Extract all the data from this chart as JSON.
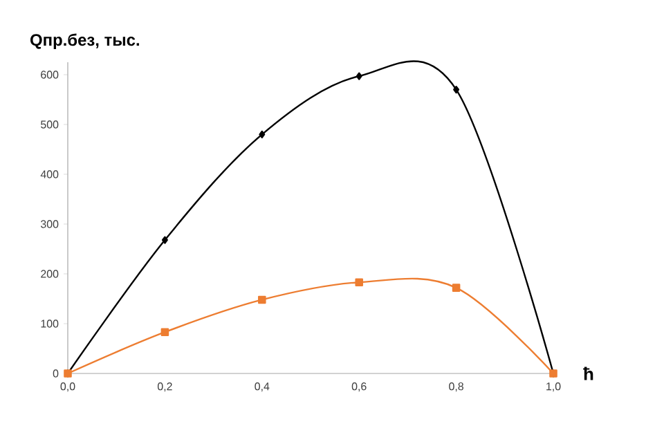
{
  "chart_data": {
    "type": "line",
    "ylabel": "Qпр.без, тыс.",
    "xlabel": "ħ",
    "x": [
      0,
      0.2,
      0.4,
      0.6,
      0.8,
      1.0
    ],
    "series": [
      {
        "color": "#000000",
        "marker": "diamond",
        "values": [
          0,
          268,
          480,
          597,
          570,
          0
        ]
      },
      {
        "color": "#ed7d31",
        "marker": "square",
        "values": [
          0,
          83,
          148,
          183,
          172,
          0
        ]
      }
    ],
    "xlim": [
      0,
      1.0
    ],
    "xticks": [
      {
        "value": 0,
        "label": "0,0"
      },
      {
        "value": 0.2,
        "label": "0,2"
      },
      {
        "value": 0.4,
        "label": "0,4"
      },
      {
        "value": 0.6,
        "label": "0,6"
      },
      {
        "value": 0.8,
        "label": "0,8"
      },
      {
        "value": 1.0,
        "label": "1,0"
      }
    ],
    "ylim": [
      0,
      625
    ],
    "yticks": [
      0,
      100,
      200,
      300,
      400,
      500,
      600
    ],
    "grid": false
  }
}
